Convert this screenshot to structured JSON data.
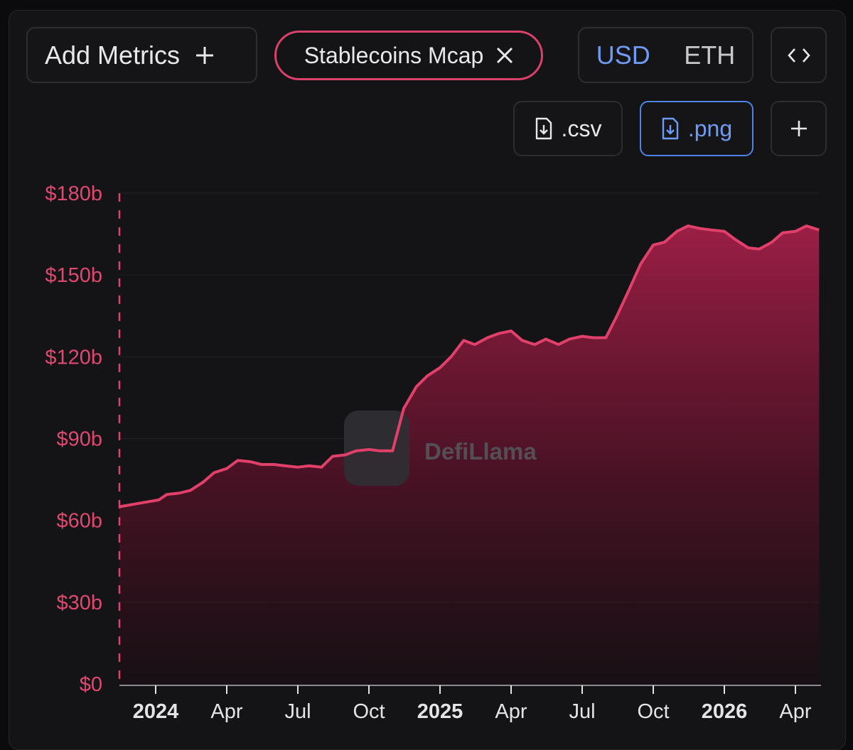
{
  "toolbar": {
    "add_metrics_label": "Add Metrics",
    "metric_chip_label": "Stablecoins Mcap",
    "currency": {
      "usd": "USD",
      "eth": "ETH",
      "selected": "USD"
    },
    "csv_label": ".csv",
    "png_label": ".png"
  },
  "icons": {
    "add": "plus-icon",
    "remove": "close-icon",
    "embed": "code-icon",
    "download": "file-download-icon",
    "add_chart": "plus-icon"
  },
  "watermark": "DefiLlama",
  "colors": {
    "series": "#e0406a",
    "active": "#6f9bf5",
    "axis_text": "#e0486f"
  },
  "chart_data": {
    "type": "area",
    "ylim": [
      0,
      180
    ],
    "y_ticks": [
      "$0",
      "$30b",
      "$60b",
      "$90b",
      "$120b",
      "$150b",
      "$180b"
    ],
    "x_ticks": [
      {
        "label": "2024",
        "month": 0,
        "bold": true
      },
      {
        "label": "Apr",
        "month": 3,
        "bold": false
      },
      {
        "label": "Jul",
        "month": 6,
        "bold": false
      },
      {
        "label": "Oct",
        "month": 9,
        "bold": false
      },
      {
        "label": "2025",
        "month": 12,
        "bold": true
      },
      {
        "label": "Apr",
        "month": 15,
        "bold": false
      },
      {
        "label": "Jul",
        "month": 18,
        "bold": false
      },
      {
        "label": "Oct",
        "month": 21,
        "bold": false
      },
      {
        "label": "2026",
        "month": 24,
        "bold": true
      },
      {
        "label": "Apr",
        "month": 27,
        "bold": false
      }
    ],
    "series": [
      {
        "points": [
          [
            "2023-11-15",
            65.0
          ],
          [
            "2023-12-15",
            66.5
          ],
          [
            "2024-01-05",
            67.5
          ],
          [
            "2024-01-15",
            69.5
          ],
          [
            "2024-02-01",
            70.0
          ],
          [
            "2024-02-15",
            71.0
          ],
          [
            "2024-03-01",
            74.0
          ],
          [
            "2024-03-15",
            77.5
          ],
          [
            "2024-04-01",
            79.0
          ],
          [
            "2024-04-15",
            82.0
          ],
          [
            "2024-05-01",
            81.5
          ],
          [
            "2024-05-15",
            80.5
          ],
          [
            "2024-06-01",
            80.5
          ],
          [
            "2024-06-15",
            80.0
          ],
          [
            "2024-07-01",
            79.5
          ],
          [
            "2024-07-15",
            80.0
          ],
          [
            "2024-08-01",
            79.5
          ],
          [
            "2024-08-15",
            83.5
          ],
          [
            "2024-09-01",
            84.0
          ],
          [
            "2024-09-15",
            85.5
          ],
          [
            "2024-10-01",
            86.0
          ],
          [
            "2024-10-15",
            85.5
          ],
          [
            "2024-11-01",
            85.5
          ],
          [
            "2024-11-15",
            101.0
          ],
          [
            "2024-12-01",
            109.0
          ],
          [
            "2024-12-15",
            113.0
          ],
          [
            "2025-01-01",
            116.0
          ],
          [
            "2025-01-15",
            120.0
          ],
          [
            "2025-02-01",
            126.0
          ],
          [
            "2025-02-15",
            124.5
          ],
          [
            "2025-03-01",
            127.0
          ],
          [
            "2025-03-15",
            128.5
          ],
          [
            "2025-04-01",
            129.5
          ],
          [
            "2025-04-15",
            126.0
          ],
          [
            "2025-05-01",
            124.5
          ],
          [
            "2025-05-15",
            126.5
          ],
          [
            "2025-06-01",
            124.5
          ],
          [
            "2025-06-15",
            126.5
          ],
          [
            "2025-07-01",
            127.5
          ],
          [
            "2025-07-15",
            127.0
          ],
          [
            "2025-08-01",
            127.0
          ],
          [
            "2025-08-15",
            135.0
          ],
          [
            "2025-09-01",
            145.0
          ],
          [
            "2025-09-15",
            154.0
          ],
          [
            "2025-10-01",
            161.0
          ],
          [
            "2025-10-15",
            162.0
          ],
          [
            "2025-11-01",
            166.0
          ],
          [
            "2025-11-15",
            168.0
          ],
          [
            "2025-12-01",
            167.0
          ],
          [
            "2025-12-15",
            166.5
          ],
          [
            "2026-01-01",
            166.0
          ],
          [
            "2026-01-15",
            163.0
          ],
          [
            "2026-02-01",
            160.0
          ],
          [
            "2026-02-15",
            159.5
          ],
          [
            "2026-03-01",
            162.0
          ],
          [
            "2026-03-15",
            165.5
          ],
          [
            "2026-04-01",
            166.0
          ],
          [
            "2026-04-15",
            168.0
          ],
          [
            "2026-05-01",
            166.5
          ]
        ]
      }
    ]
  }
}
